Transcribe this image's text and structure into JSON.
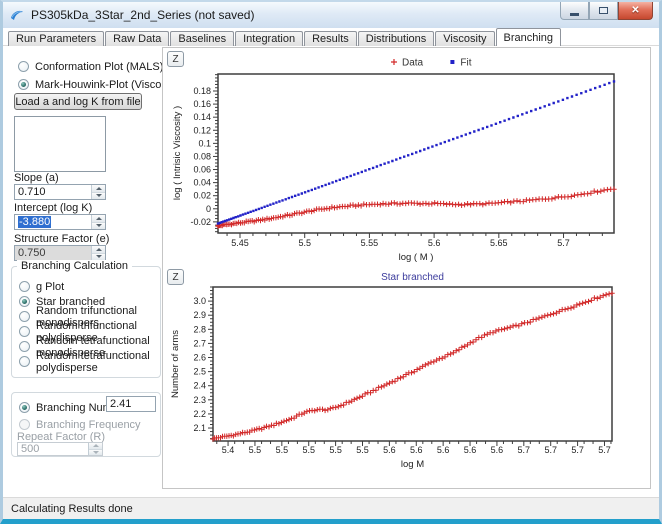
{
  "window": {
    "title": "PS305kDa_3Star_2nd_Series (not saved)",
    "status": "Calculating Results done",
    "buttons": {
      "minimize": "minimize",
      "maximize": "maximize",
      "close": "close"
    }
  },
  "tabs": [
    "Run Parameters",
    "Raw Data",
    "Baselines",
    "Integration",
    "Results",
    "Distributions",
    "Viscosity",
    "Branching"
  ],
  "active_tab": "Branching",
  "left_panel": {
    "plot_type_options": [
      {
        "label": "Conformation Plot (MALS)",
        "checked": false,
        "enabled": true
      },
      {
        "label": "Mark-Houwink-Plot (Viscometer)",
        "checked": true,
        "enabled": true
      }
    ],
    "load_button": "Load a and log K from file",
    "slope": {
      "label": "Slope (a)",
      "value": "0.710"
    },
    "intercept": {
      "label": "Intercept (log K)",
      "value": "-3.880"
    },
    "structure_factor": {
      "label": "Structure Factor (e)",
      "value": "0.750"
    },
    "branching_calculation": {
      "title": "Branching Calculation",
      "options": [
        {
          "label": "g Plot",
          "checked": false,
          "enabled": true
        },
        {
          "label": "Star branched",
          "checked": true,
          "enabled": true
        },
        {
          "label": "Random trifunctional monodispers",
          "checked": false,
          "enabled": true
        },
        {
          "label": "Random trifunctional polydisperse",
          "checked": false,
          "enabled": true
        },
        {
          "label": "Random tetrafunctional monodisperse",
          "checked": false,
          "enabled": true
        },
        {
          "label": "Random tetrafunctional polydisperse",
          "checked": false,
          "enabled": true
        }
      ]
    },
    "branching_number": {
      "label": "Branching Number",
      "value": "2.41",
      "checked": true
    },
    "branching_frequency": {
      "label": "Branching Frequency",
      "checked": false,
      "enabled": false
    },
    "repeat_factor": {
      "label": "Repeat Factor (R)",
      "value": "500",
      "enabled": false
    }
  },
  "zoom_button_label": "Z",
  "colors": {
    "data_red": "#d22a2a",
    "fit_blue": "#2222c8",
    "chart_title_blue": "#3b3b9c",
    "selection_blue": "#2f6fd0"
  },
  "chart_data": [
    {
      "type": "scatter",
      "title": "",
      "xlabel": "log ( M )",
      "ylabel": "log ( Intrisic Viscosity )",
      "xlim": [
        5.433,
        5.739
      ],
      "ylim": [
        -0.037,
        0.206
      ],
      "x_ticks": [
        5.45,
        5.5,
        5.55,
        5.6,
        5.65,
        5.7
      ],
      "x_tick_labels": [
        "5.45",
        "5.5",
        "5.55",
        "5.6",
        "5.65",
        "5.7"
      ],
      "x_minor_step": 0.01,
      "y_ticks": [
        0.18,
        0.16,
        0.14,
        0.12,
        0.1,
        0.08,
        0.06,
        0.04,
        0.02,
        0,
        -0.02
      ],
      "y_tick_labels": [
        "0.18",
        "0.16",
        "0.14",
        "0.12",
        "0.1",
        "0.08",
        "0.06",
        "0.04",
        "0.02",
        "0",
        "-0.02"
      ],
      "y_minor_step": 0.005,
      "grid": false,
      "legend_position": "top",
      "legend": [
        {
          "name": "Data",
          "marker": "plus",
          "color": "#d22a2a"
        },
        {
          "name": "Fit",
          "marker": "square",
          "color": "#2222c8"
        }
      ],
      "series": [
        {
          "name": "Data",
          "marker": "plus",
          "color": "#d22a2a",
          "n_markers": 150,
          "x_exp": 1.25,
          "jitter": 0.0013,
          "points": [
            [
              5.433,
              -0.026
            ],
            [
              5.44,
              -0.024
            ],
            [
              5.45,
              -0.0215
            ],
            [
              5.46,
              -0.019
            ],
            [
              5.47,
              -0.016
            ],
            [
              5.48,
              -0.0125
            ],
            [
              5.49,
              -0.009
            ],
            [
              5.5,
              -0.005
            ],
            [
              5.51,
              -0.0015
            ],
            [
              5.52,
              0.0015
            ],
            [
              5.53,
              0.0035
            ],
            [
              5.54,
              0.005
            ],
            [
              5.55,
              0.0065
            ],
            [
              5.56,
              0.0075
            ],
            [
              5.57,
              0.008
            ],
            [
              5.58,
              0.0085
            ],
            [
              5.59,
              0.008
            ],
            [
              5.6,
              0.008
            ],
            [
              5.61,
              0.007
            ],
            [
              5.62,
              0.0065
            ],
            [
              5.63,
              0.007
            ],
            [
              5.64,
              0.0075
            ],
            [
              5.65,
              0.009
            ],
            [
              5.66,
              0.0105
            ],
            [
              5.67,
              0.012
            ],
            [
              5.68,
              0.014
            ],
            [
              5.69,
              0.016
            ],
            [
              5.7,
              0.0185
            ],
            [
              5.71,
              0.021
            ],
            [
              5.72,
              0.0245
            ],
            [
              5.73,
              0.028
            ],
            [
              5.739,
              0.031
            ]
          ]
        },
        {
          "name": "Fit",
          "marker": "square",
          "color": "#2222c8",
          "n_markers": 110,
          "x_exp": 1.3,
          "jitter": 0,
          "fit_equation": "y = 0.710 * x - 3.880",
          "points": [
            [
              5.433,
              -0.0226
            ],
            [
              5.46,
              -0.0034
            ],
            [
              5.49,
              0.0179
            ],
            [
              5.52,
              0.0392
            ],
            [
              5.55,
              0.0605
            ],
            [
              5.58,
              0.0818
            ],
            [
              5.61,
              0.1031
            ],
            [
              5.64,
              0.1244
            ],
            [
              5.67,
              0.1457
            ],
            [
              5.7,
              0.167
            ],
            [
              5.739,
              0.1947
            ]
          ]
        }
      ]
    },
    {
      "type": "scatter",
      "title": "Star branched",
      "xlabel": "log M",
      "ylabel": "Number of arms",
      "xlim": [
        5.386,
        5.757
      ],
      "ylim": [
        2.008,
        3.1
      ],
      "x_ticks": [
        5.4,
        5.425,
        5.45,
        5.475,
        5.5,
        5.525,
        5.55,
        5.575,
        5.6,
        5.625,
        5.65,
        5.675,
        5.7,
        5.725,
        5.75
      ],
      "x_tick_labels": [
        "5.4",
        "5.5",
        "5.5",
        "5.5",
        "5.5",
        "5.5",
        "5.6",
        "5.6",
        "5.6",
        "5.6",
        "5.6",
        "5.7",
        "5.7",
        "5.7",
        "5.7"
      ],
      "x_minor_step": 0.00833,
      "y_ticks": [
        3.0,
        2.9,
        2.8,
        2.7,
        2.6,
        2.5,
        2.4,
        2.3,
        2.2,
        2.1
      ],
      "y_tick_labels": [
        "3.0",
        "2.9",
        "2.8",
        "2.7",
        "2.6",
        "2.5",
        "2.4",
        "2.3",
        "2.2",
        "2.1"
      ],
      "y_minor_step": 0.025,
      "grid": false,
      "legend": [],
      "series": [
        {
          "name": "Number of arms",
          "marker": "plus",
          "color": "#d22a2a",
          "n_markers": 150,
          "x_exp": 1.1,
          "jitter": 0.006,
          "points": [
            [
              5.386,
              2.025
            ],
            [
              5.405,
              2.05
            ],
            [
              5.423,
              2.08
            ],
            [
              5.442,
              2.12
            ],
            [
              5.46,
              2.17
            ],
            [
              5.471,
              2.21
            ],
            [
              5.482,
              2.23
            ],
            [
              5.494,
              2.23
            ],
            [
              5.505,
              2.26
            ],
            [
              5.52,
              2.31
            ],
            [
              5.534,
              2.36
            ],
            [
              5.553,
              2.43
            ],
            [
              5.572,
              2.5
            ],
            [
              5.59,
              2.57
            ],
            [
              5.609,
              2.63
            ],
            [
              5.62,
              2.68
            ],
            [
              5.631,
              2.73
            ],
            [
              5.646,
              2.78
            ],
            [
              5.661,
              2.81
            ],
            [
              5.675,
              2.84
            ],
            [
              5.69,
              2.88
            ],
            [
              5.705,
              2.92
            ],
            [
              5.72,
              2.96
            ],
            [
              5.738,
              3.01
            ],
            [
              5.757,
              3.06
            ]
          ]
        }
      ]
    }
  ]
}
